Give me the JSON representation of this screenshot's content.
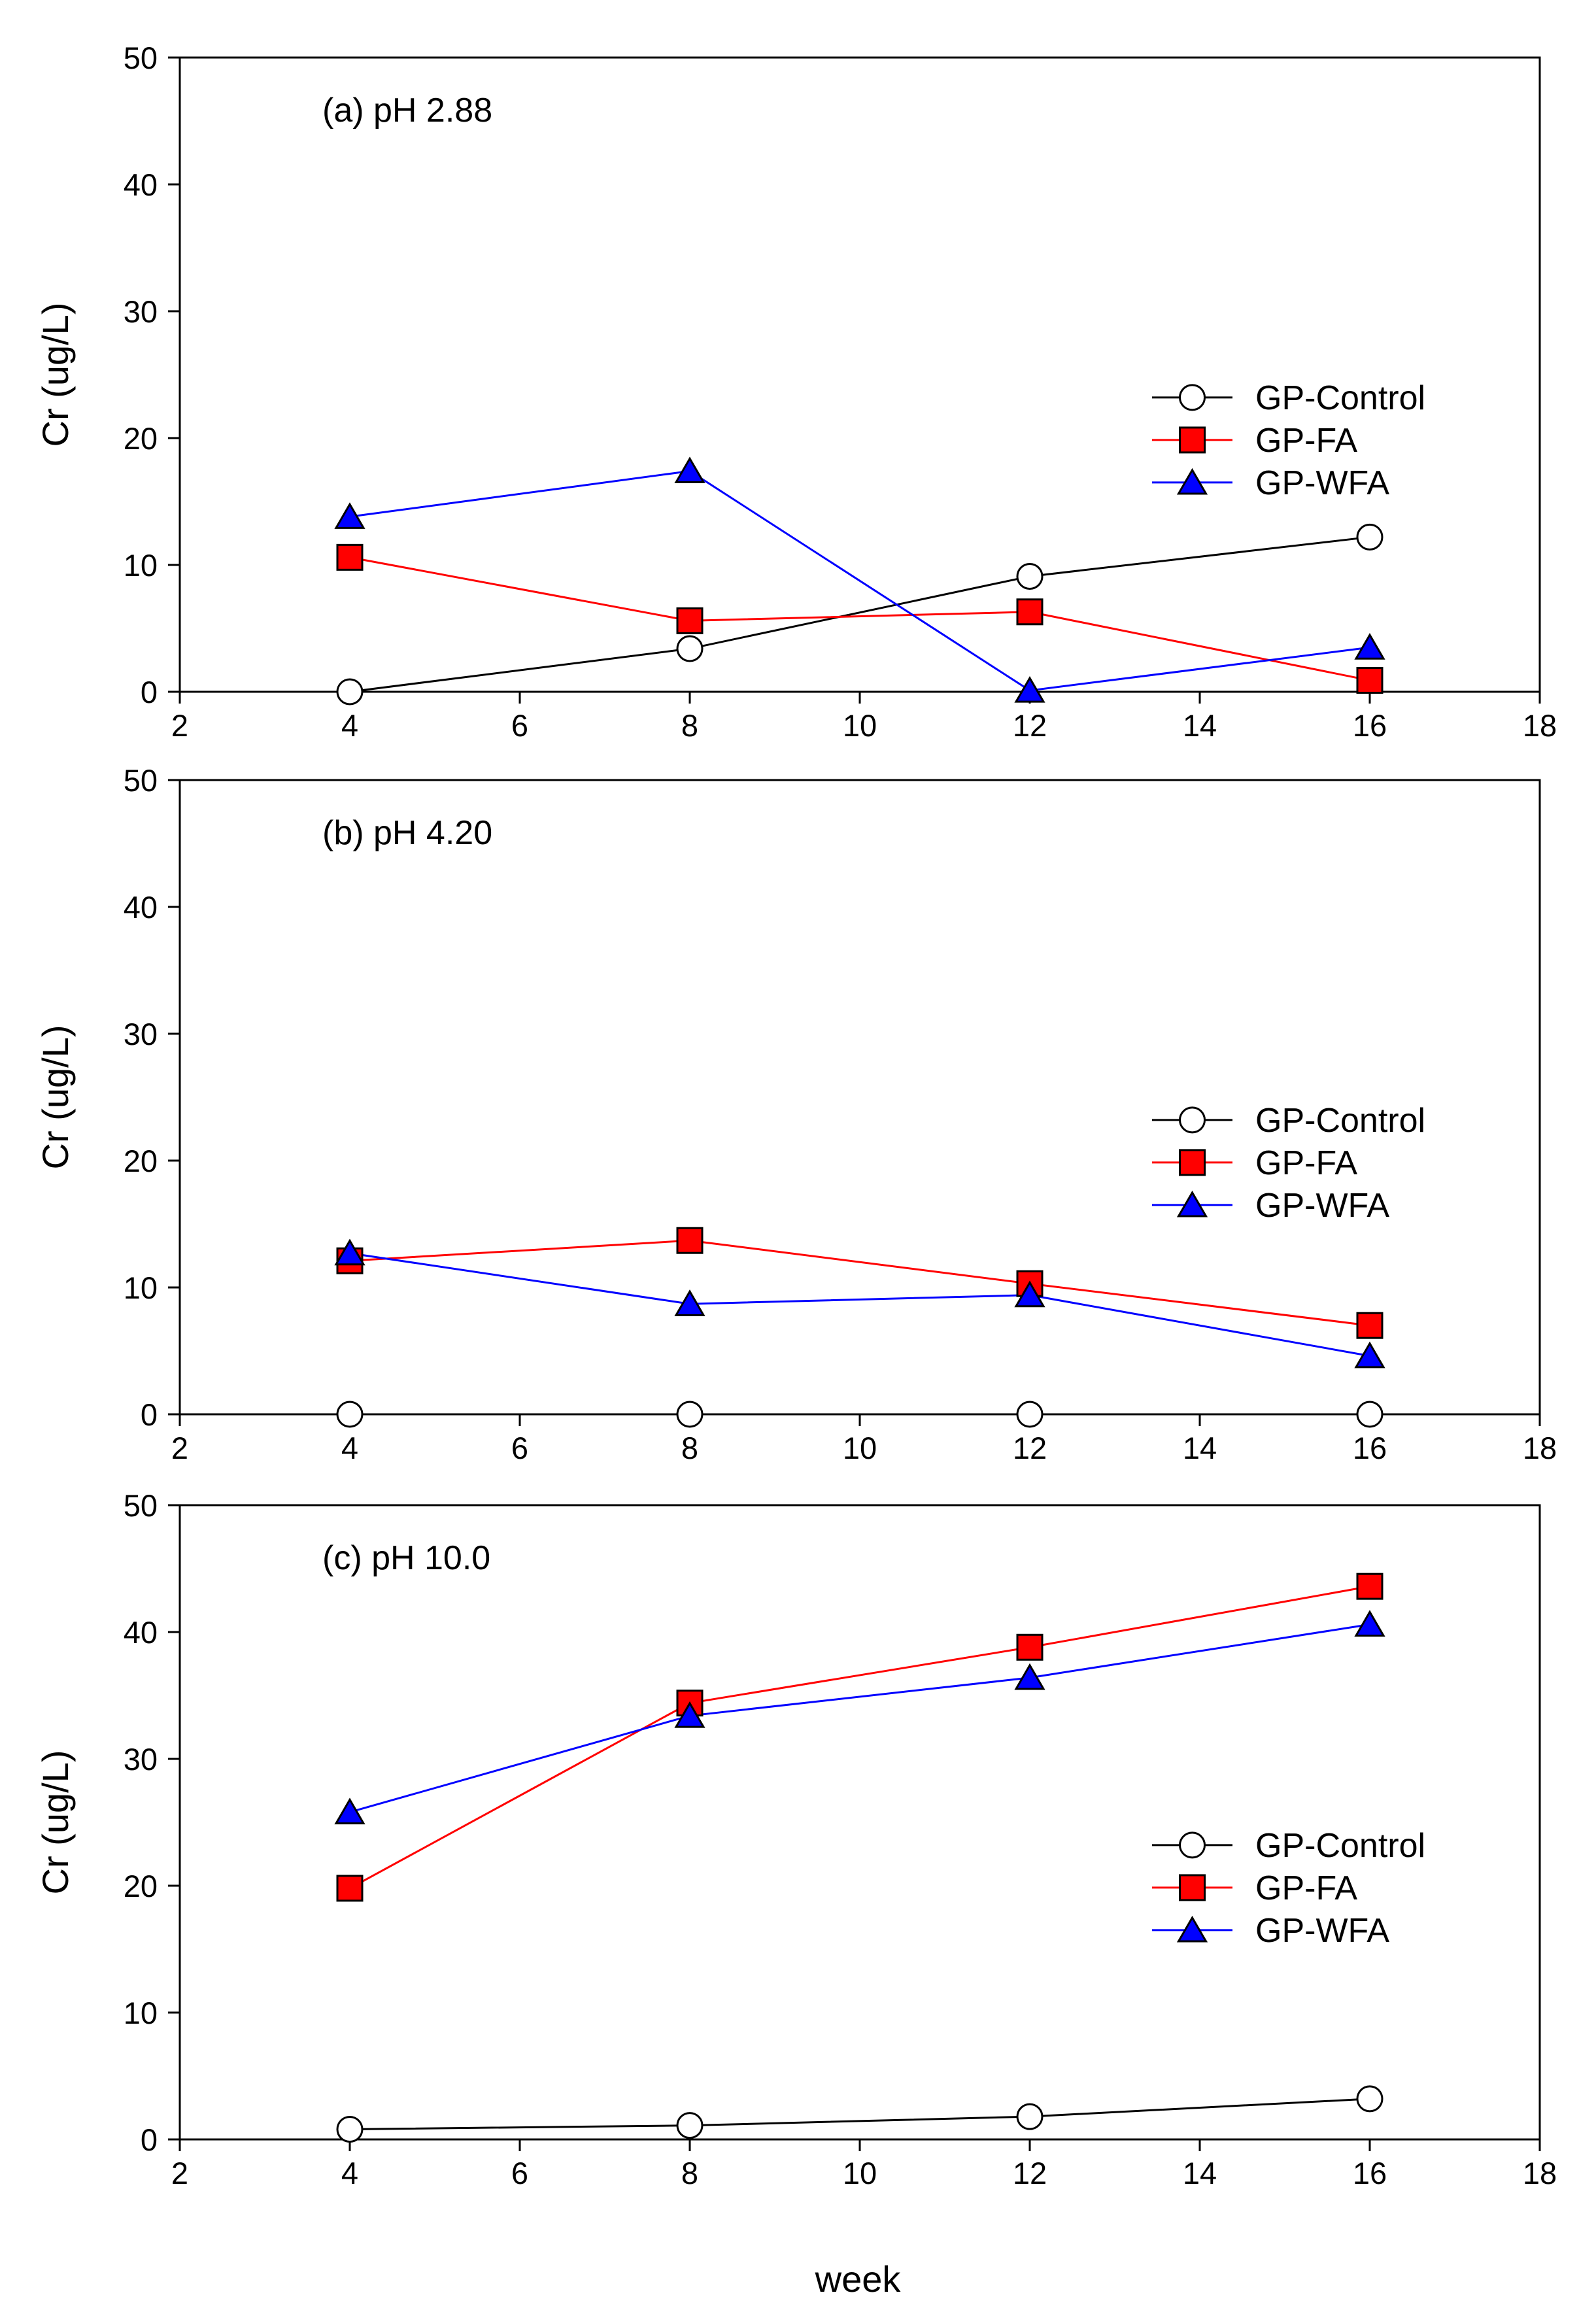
{
  "chart_data": [
    {
      "type": "line",
      "title": "(a) pH 2.88",
      "xlabel": "",
      "ylabel": "Cr (ug/L)",
      "xlim": [
        2,
        18
      ],
      "ylim": [
        0,
        50
      ],
      "xticks": [
        2,
        4,
        6,
        8,
        10,
        12,
        14,
        16,
        18
      ],
      "yticks": [
        0,
        10,
        20,
        30,
        40,
        50
      ],
      "grid": false,
      "legend": "center-right",
      "x": [
        4,
        8,
        12,
        16
      ],
      "series": [
        {
          "name": "GP-Control",
          "color": "#000000",
          "marker": "circle",
          "values": [
            0,
            3.4,
            9.1,
            12.2
          ]
        },
        {
          "name": "GP-FA",
          "color": "#ff0000",
          "marker": "square",
          "values": [
            10.6,
            5.6,
            6.3,
            0.9
          ]
        },
        {
          "name": "GP-WFA",
          "color": "#0000ff",
          "marker": "triangle",
          "values": [
            13.8,
            17.4,
            0.1,
            3.5
          ]
        }
      ]
    },
    {
      "type": "line",
      "title": "(b) pH 4.20",
      "xlabel": "",
      "ylabel": "Cr (ug/L)",
      "xlim": [
        2,
        18
      ],
      "ylim": [
        0,
        50
      ],
      "xticks": [
        2,
        4,
        6,
        8,
        10,
        12,
        14,
        16,
        18
      ],
      "yticks": [
        0,
        10,
        20,
        30,
        40,
        50
      ],
      "grid": false,
      "legend": "center-right",
      "x": [
        4,
        8,
        12,
        16
      ],
      "series": [
        {
          "name": "GP-Control",
          "color": "#000000",
          "marker": "circle",
          "values": [
            0,
            0,
            0,
            0
          ]
        },
        {
          "name": "GP-FA",
          "color": "#ff0000",
          "marker": "square",
          "values": [
            12.1,
            13.7,
            10.3,
            7.0
          ]
        },
        {
          "name": "GP-WFA",
          "color": "#0000ff",
          "marker": "triangle",
          "values": [
            12.7,
            8.7,
            9.4,
            4.6
          ]
        }
      ]
    },
    {
      "type": "line",
      "title": "(c) pH 10.0",
      "xlabel": "week",
      "ylabel": "Cr (ug/L)",
      "xlim": [
        2,
        18
      ],
      "ylim": [
        0,
        50
      ],
      "xticks": [
        2,
        4,
        6,
        8,
        10,
        12,
        14,
        16,
        18
      ],
      "yticks": [
        0,
        10,
        20,
        30,
        40,
        50
      ],
      "grid": false,
      "legend": "center-right",
      "x": [
        4,
        8,
        12,
        16
      ],
      "series": [
        {
          "name": "GP-Control",
          "color": "#000000",
          "marker": "circle",
          "values": [
            0.8,
            1.1,
            1.8,
            3.2
          ]
        },
        {
          "name": "GP-FA",
          "color": "#ff0000",
          "marker": "square",
          "values": [
            19.8,
            34.4,
            38.8,
            43.6
          ]
        },
        {
          "name": "GP-WFA",
          "color": "#0000ff",
          "marker": "triangle",
          "values": [
            25.8,
            33.4,
            36.4,
            40.6
          ]
        }
      ]
    }
  ]
}
